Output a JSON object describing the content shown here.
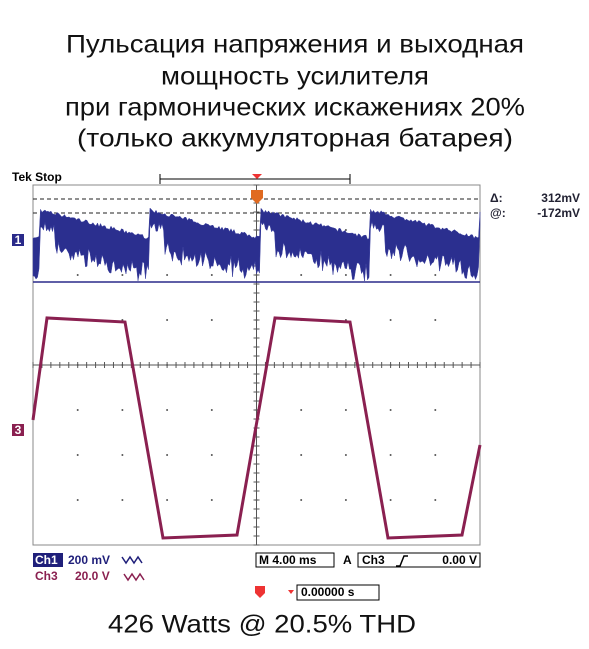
{
  "title": [
    "Пульсация напряжения и выходная",
    "мощность усилителя",
    "при гармонических искажениях 20%",
    "(только аккумуляторная батарея)"
  ],
  "scope": {
    "status": "Tek Stop",
    "cursor": {
      "delta_label": "Δ:",
      "delta": "312mV",
      "at_label": "@:",
      "at": "-172mV"
    },
    "markers": [
      "1",
      "3"
    ],
    "ch1": {
      "name": "Ch1",
      "scale": "200 mV"
    },
    "ch3": {
      "name": "Ch3",
      "scale": "20.0 V"
    },
    "timebase": "M 4.00 ms",
    "trigger": {
      "mode": "A",
      "source": "Ch3",
      "level": "0.00 V"
    },
    "position": "0.00000 s"
  },
  "footer": "426 Watts @ 20.5% THD"
}
